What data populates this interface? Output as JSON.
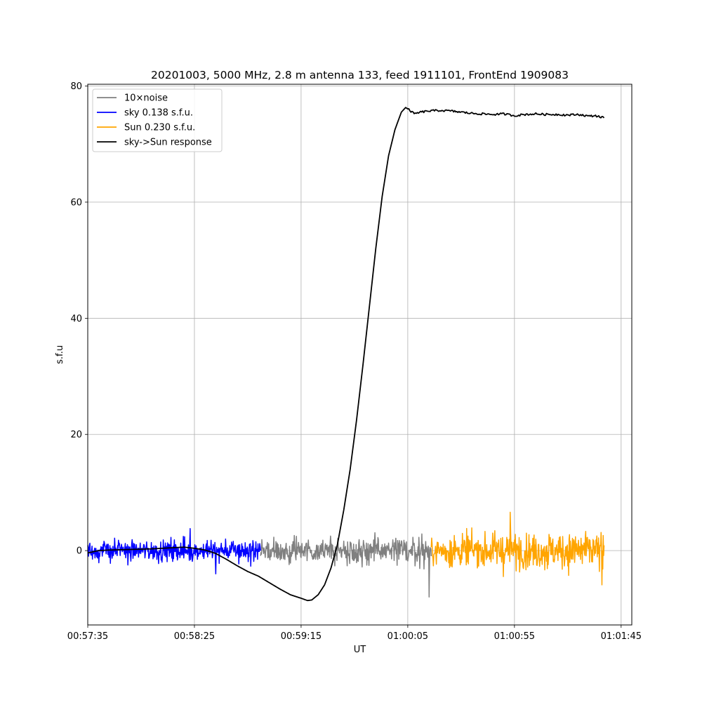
{
  "chart_data": {
    "type": "line",
    "title": "20201003, 5000 MHz, 2.8 m antenna 133, feed 1911101, FrontEnd 1909083",
    "xlabel": "UT",
    "ylabel": "s.f.u",
    "xlim": [
      0,
      255
    ],
    "ylim": [
      -12.8,
      80.3
    ],
    "xticks": [
      {
        "value": 0,
        "label": "00:57:35"
      },
      {
        "value": 50,
        "label": "00:58:25"
      },
      {
        "value": 100,
        "label": "00:59:15"
      },
      {
        "value": 150,
        "label": "01:00:05"
      },
      {
        "value": 200,
        "label": "01:00:55"
      },
      {
        "value": 250,
        "label": "01:01:45"
      }
    ],
    "yticks": [
      {
        "value": 0,
        "label": "0"
      },
      {
        "value": 20,
        "label": "20"
      },
      {
        "value": 40,
        "label": "40"
      },
      {
        "value": 60,
        "label": "60"
      },
      {
        "value": 80,
        "label": "80"
      }
    ],
    "grid": true,
    "legend_position": "top-left",
    "series": [
      {
        "name": "10×noise",
        "color": "#808080",
        "kind": "noise",
        "x_range": [
          81,
          161
        ],
        "amplitude": [
          [
            81,
            3.2
          ],
          [
            120,
            3.6
          ],
          [
            161,
            4.2
          ]
        ],
        "spikes": [
          {
            "x": 160,
            "value": -8.0
          }
        ]
      },
      {
        "name": "sky 0.138 s.f.u.",
        "color": "#0000ff",
        "kind": "noise",
        "x_range": [
          0,
          81
        ],
        "amplitude": [
          [
            0,
            3.0
          ],
          [
            81,
            3.2
          ]
        ],
        "spikes": [
          {
            "x": 48,
            "value": 3.8
          },
          {
            "x": 60,
            "value": -4.0
          }
        ]
      },
      {
        "name": "Sun 0.230 s.f.u.",
        "color": "#ffa500",
        "kind": "noise",
        "x_range": [
          161,
          242
        ],
        "amplitude": [
          [
            161,
            4.4
          ],
          [
            200,
            5.2
          ],
          [
            242,
            5.6
          ]
        ],
        "spikes": [
          {
            "x": 198,
            "value": 6.6
          },
          {
            "x": 241,
            "value": -5.9
          }
        ]
      },
      {
        "name": "sky->Sun response",
        "color": "#000000",
        "kind": "line",
        "points": [
          [
            0,
            -0.4
          ],
          [
            5,
            0.0
          ],
          [
            10,
            0.1
          ],
          [
            20,
            0.2
          ],
          [
            30,
            0.3
          ],
          [
            40,
            0.5
          ],
          [
            45,
            0.6
          ],
          [
            50,
            0.4
          ],
          [
            55,
            0.1
          ],
          [
            60,
            -0.5
          ],
          [
            65,
            -1.5
          ],
          [
            70,
            -2.6
          ],
          [
            75,
            -3.6
          ],
          [
            80,
            -4.4
          ],
          [
            85,
            -5.5
          ],
          [
            90,
            -6.6
          ],
          [
            95,
            -7.6
          ],
          [
            100,
            -8.2
          ],
          [
            103,
            -8.6
          ],
          [
            105,
            -8.5
          ],
          [
            108,
            -7.6
          ],
          [
            111,
            -5.9
          ],
          [
            114,
            -3.0
          ],
          [
            117,
            1.0
          ],
          [
            120,
            7.0
          ],
          [
            123,
            14.0
          ],
          [
            126,
            22.5
          ],
          [
            129,
            32.0
          ],
          [
            132,
            42.0
          ],
          [
            135,
            52.0
          ],
          [
            138,
            61.0
          ],
          [
            141,
            68.0
          ],
          [
            144,
            72.5
          ],
          [
            147,
            75.5
          ],
          [
            149,
            76.3
          ],
          [
            151,
            75.8
          ],
          [
            153,
            75.2
          ],
          [
            156,
            75.5
          ],
          [
            160,
            75.7
          ],
          [
            165,
            75.8
          ],
          [
            170,
            75.7
          ],
          [
            175,
            75.5
          ],
          [
            180,
            75.3
          ],
          [
            185,
            75.2
          ],
          [
            190,
            75.1
          ],
          [
            195,
            75.2
          ],
          [
            200,
            74.9
          ],
          [
            205,
            75.1
          ],
          [
            210,
            75.2
          ],
          [
            215,
            75.1
          ],
          [
            220,
            75.1
          ],
          [
            225,
            75.0
          ],
          [
            230,
            75.1
          ],
          [
            235,
            74.8
          ],
          [
            238,
            74.9
          ],
          [
            242,
            74.5
          ]
        ]
      }
    ]
  }
}
